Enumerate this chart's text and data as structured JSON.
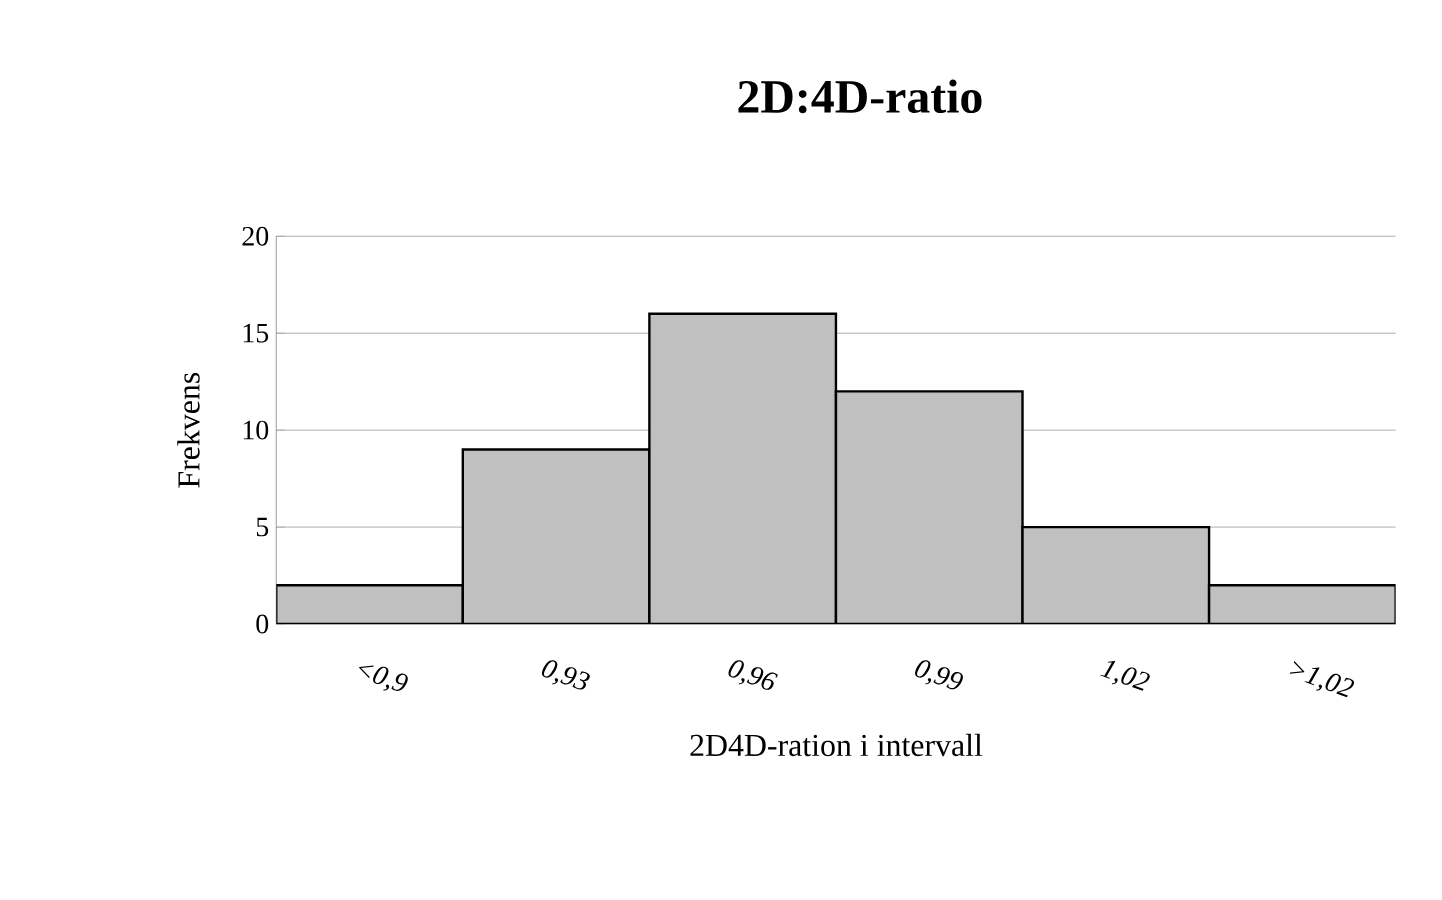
{
  "chart_data": {
    "type": "bar",
    "title": "2D:4D-ratio",
    "xlabel": "2D4D-ration i intervall",
    "ylabel": "Frekvens",
    "categories": [
      "<0,9",
      "0,93",
      "0,96",
      "0,99",
      "1,02",
      ">1,02"
    ],
    "values": [
      2,
      9,
      16,
      12,
      5,
      2
    ],
    "color": "#c0c0c0",
    "ylim": [
      0,
      20
    ],
    "yticks": [
      0,
      5,
      10,
      15,
      20
    ],
    "grid": "y"
  }
}
